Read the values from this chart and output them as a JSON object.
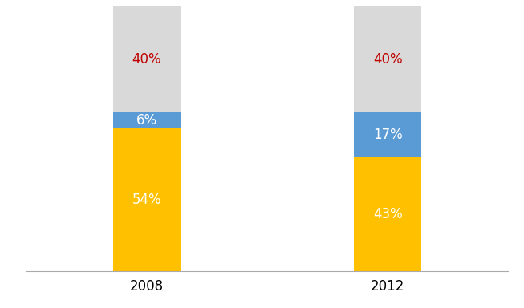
{
  "categories": [
    "2008",
    "2012"
  ],
  "segments": {
    "orange": [
      54,
      43
    ],
    "blue": [
      6,
      17
    ],
    "gray": [
      40,
      40
    ]
  },
  "colors": {
    "orange": "#FFC000",
    "blue": "#5B9BD5",
    "gray": "#D9D9D9"
  },
  "labels": {
    "orange": [
      "54%",
      "43%"
    ],
    "blue": [
      "6%",
      "17%"
    ],
    "gray": [
      "40%",
      "40%"
    ]
  },
  "label_colors": {
    "orange": "#FFFFFF",
    "blue": "#FFFFFF",
    "gray": "#C00000"
  },
  "label_fontsize": 12,
  "bar_width": 0.28,
  "background_color": "#FFFFFF",
  "ylim": [
    0,
    100
  ],
  "xlim": [
    -0.5,
    1.5
  ]
}
